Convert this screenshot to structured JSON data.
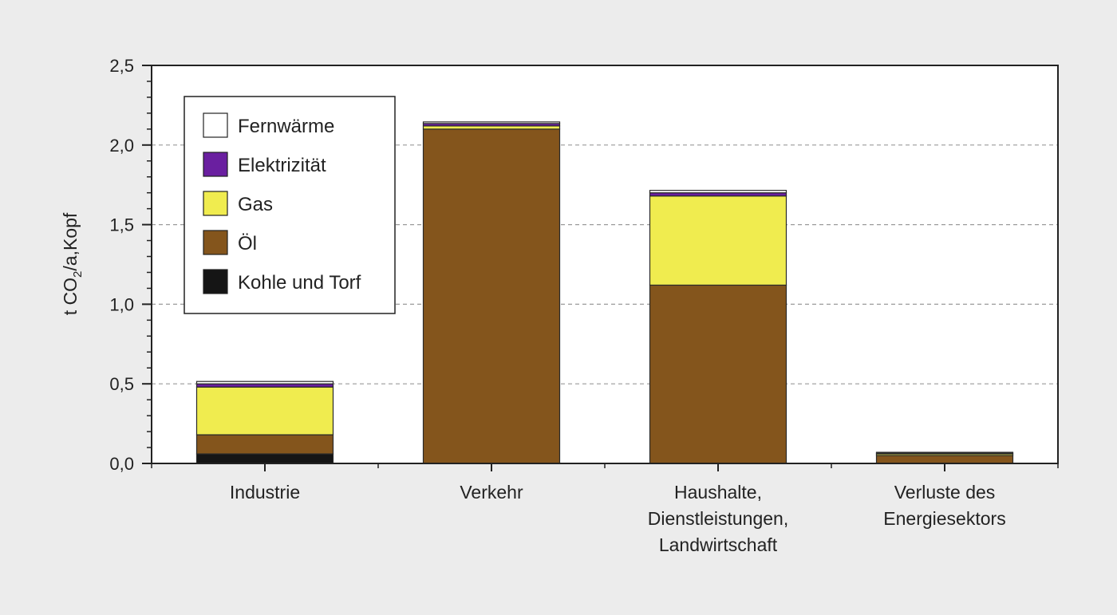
{
  "chart_data": {
    "type": "bar",
    "stacked": true,
    "categories": [
      [
        "Industrie"
      ],
      [
        "Verkehr"
      ],
      [
        "Haushalte,",
        "Dienstleistungen,",
        "Landwirtschaft"
      ],
      [
        "Verluste des",
        "Energiesektors"
      ]
    ],
    "series": [
      {
        "name": "Kohle und Torf",
        "color": "#151515",
        "values": [
          0.06,
          0.0,
          0.0,
          0.0
        ]
      },
      {
        "name": "Öl",
        "color": "#84551c",
        "values": [
          0.12,
          2.1,
          1.12,
          0.05
        ]
      },
      {
        "name": "Gas",
        "color": "#f0ec4f",
        "values": [
          0.3,
          0.02,
          0.56,
          0.01
        ]
      },
      {
        "name": "Elektrizität",
        "color": "#6a1fa0",
        "values": [
          0.02,
          0.015,
          0.02,
          0.005
        ]
      },
      {
        "name": "Fernwärme",
        "color": "#ffffff",
        "values": [
          0.015,
          0.01,
          0.015,
          0.005
        ]
      }
    ],
    "ylabel_prefix": "t CO",
    "ylabel_sub": "2",
    "ylabel_suffix": "/a,Kopf",
    "ylim": [
      0,
      2.5
    ],
    "yticks": [
      "0,0",
      "0,5",
      "1,0",
      "1,5",
      "2,0",
      "2,5"
    ],
    "grid": "dashed horizontal",
    "legend_position": "top-left",
    "legend_order": [
      "Fernwärme",
      "Elektrizität",
      "Gas",
      "Öl",
      "Kohle und Torf"
    ]
  }
}
